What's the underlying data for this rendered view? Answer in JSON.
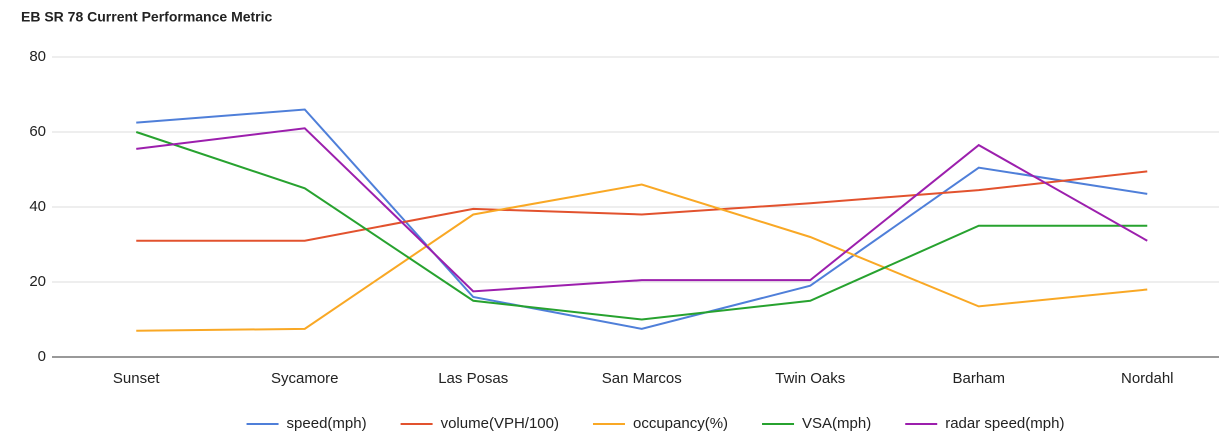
{
  "chart_data": {
    "type": "line",
    "title": "EB SR 78 Current Performance Metric",
    "categories": [
      "Sunset",
      "Sycamore",
      "Las Posas",
      "San Marcos",
      "Twin Oaks",
      "Barham",
      "Nordahl"
    ],
    "series": [
      {
        "name": "speed(mph)",
        "color": "#4f7fd9",
        "values": [
          62.5,
          66,
          16,
          7.5,
          19,
          50.5,
          43.5
        ]
      },
      {
        "name": "volume(VPH/100)",
        "color": "#e2522e",
        "values": [
          31,
          31,
          39.5,
          38,
          41,
          44.5,
          49.5
        ]
      },
      {
        "name": "occupancy(%)",
        "color": "#f9a825",
        "values": [
          7,
          7.5,
          38,
          46,
          32,
          13.5,
          18
        ]
      },
      {
        "name": "VSA(mph)",
        "color": "#27a22f",
        "values": [
          60,
          45,
          15,
          10,
          15,
          35,
          35
        ]
      },
      {
        "name": "radar speed(mph)",
        "color": "#9c1fad",
        "values": [
          55.5,
          61,
          17.5,
          20.5,
          20.5,
          56.5,
          31
        ]
      }
    ],
    "ylim": [
      0,
      80
    ],
    "yticks": [
      0,
      20,
      40,
      60,
      80
    ],
    "grid": true,
    "legend": "bottom"
  }
}
